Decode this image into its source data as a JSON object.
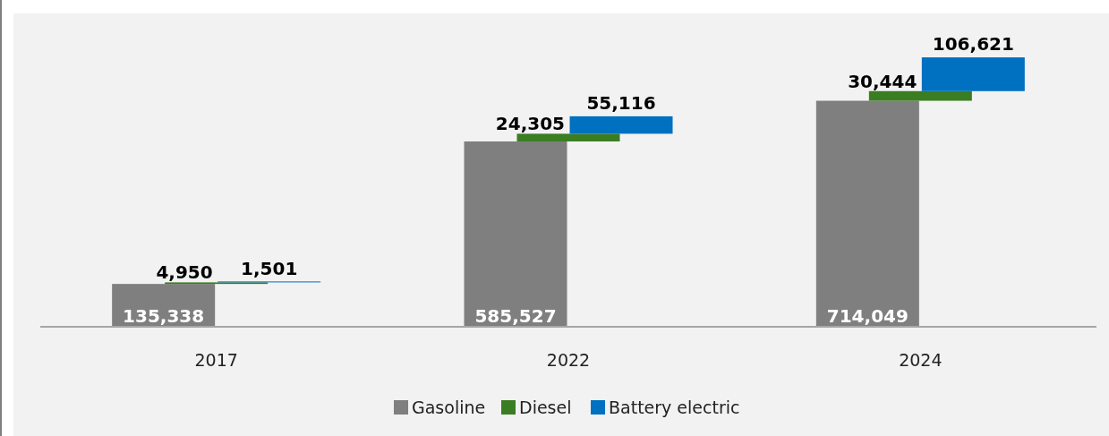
{
  "chart_data": {
    "type": "bar",
    "categories": [
      "2017",
      "2022",
      "2024"
    ],
    "series": [
      {
        "name": "Gasoline",
        "color": "#7f7f7f",
        "values": [
          135338,
          585527,
          714049
        ],
        "value_labels": [
          "135,338",
          "585,527",
          "714,049"
        ]
      },
      {
        "name": "Diesel",
        "color": "#3a7d22",
        "values": [
          4950,
          24305,
          30444
        ],
        "value_labels": [
          "4,950",
          "24,305",
          "30,444"
        ]
      },
      {
        "name": "Battery electric",
        "color": "#0070c0",
        "values": [
          1501,
          55116,
          106621
        ],
        "value_labels": [
          "1,501",
          "55,116",
          "106,621"
        ]
      }
    ],
    "stacked": true,
    "legend": "bottom",
    "grid": false
  }
}
